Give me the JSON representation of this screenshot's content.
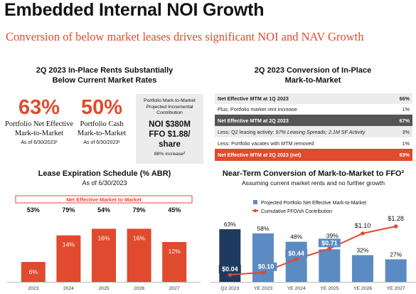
{
  "header": {
    "title": "Embedded Internal NOI Growth",
    "subtitle": "Conversion of below market leases drives significant NOI and NAV Growth"
  },
  "rents_section": {
    "title_line1": "2Q 2023 In-Place Rents Substantially",
    "title_line2": "Below Current Market Rates",
    "left": {
      "value": "63%",
      "label_line1": "Portfolio Net Effective",
      "label_line2": "Mark-to-Market",
      "asof": "As of 6/30/2023¹"
    },
    "middle": {
      "value": "50%",
      "label_line1": "Portfolio Cash",
      "label_line2": "Mark-to-Market",
      "asof": "As of 6/30/2023¹"
    },
    "box": {
      "line1": "Portfolio Mark-to-Market",
      "line2": "Projected Incremental",
      "line3": "Contribution",
      "noi": "NOI $380M",
      "ffo_line1": "FFO $1.88/",
      "ffo_line2": "share",
      "increase": "88% increase²"
    }
  },
  "conversion_section": {
    "title_line1": "2Q 2023 Conversion of In-Place",
    "title_line2": "Mark-to-Market",
    "rows": [
      {
        "label": "Net Effective MTM at 1Q 2023",
        "value": "66%",
        "style": "gray-bold"
      },
      {
        "label": "Plus: Portfolio market rent increase",
        "value": "1%",
        "style": "plain"
      },
      {
        "label": "Net Effective MTM at 2Q 2023",
        "value": "67%",
        "style": "dark"
      },
      {
        "label": "Less: Q2 leasing activity: ",
        "italic": "97% Leasing Spreads; 2.1M SF Activity",
        "value": "3%",
        "style": "gray"
      },
      {
        "label": "Less: Portfolio vacates with MTM removed",
        "value": "1%",
        "style": "plain"
      },
      {
        "label": "Net Effective MTM at 2Q 2023 (net)",
        "value": "63%",
        "style": "orange"
      }
    ]
  },
  "lease_section": {
    "title": "Lease Expiration Schedule (% ABR)",
    "subtitle": "As of 6/30/2023"
  },
  "near_term_section": {
    "title": "Near-Term Conversion of Mark-to-Market to FFO²",
    "subtitle": "Assuming current market rents and no further growth"
  },
  "colors": {
    "accent": "#e04a2e",
    "navy": "#1f3a5f",
    "steel": "#5b8bc2",
    "gray_bg": "#ececec",
    "dark_row": "#555555"
  },
  "chart_data": [
    {
      "type": "bar",
      "title": "Lease Expiration Schedule (% ABR)",
      "subtitle": "As of 6/30/2023",
      "categories": [
        "2023",
        "2024",
        "2025",
        "2026",
        "2027"
      ],
      "series": [
        {
          "values": [
            6,
            14,
            16,
            16,
            12
          ],
          "labels": [
            "6%",
            "14%",
            "16%",
            "16%",
            "12%"
          ]
        }
      ],
      "banner": "Net Effective Market to Market",
      "mtm_labels": [
        "53%",
        "79%",
        "54%",
        "79%",
        "45%"
      ],
      "ylim": [
        0,
        18
      ],
      "grid": false
    },
    {
      "type": "bar+line",
      "title": "Near-Term Conversion of Mark-to-Market to FFO²",
      "subtitle": "Assuming current market rents and no further growth",
      "categories": [
        "Q2 2023",
        "YE 2023",
        "YE 2024",
        "YE 2025",
        "YE 2026",
        "YE 2027"
      ],
      "series": [
        {
          "name": "Projected Portfolio Net Effective Mark-to-Market",
          "type": "bar",
          "values": [
            63,
            58,
            48,
            39,
            32,
            27
          ],
          "labels": [
            "63%",
            "58%",
            "48%",
            "39%",
            "32%",
            "27%"
          ]
        },
        {
          "name": "Cumulative FFO/sh Contribution",
          "type": "line",
          "values": [
            0.04,
            0.1,
            0.44,
            0.71,
            1.1,
            1.28
          ],
          "labels": [
            "$0.04",
            "$0.10",
            "$0.44",
            "$0.71",
            "$1.10",
            "$1.28"
          ]
        }
      ],
      "legend_position": "top",
      "grid": false
    }
  ]
}
